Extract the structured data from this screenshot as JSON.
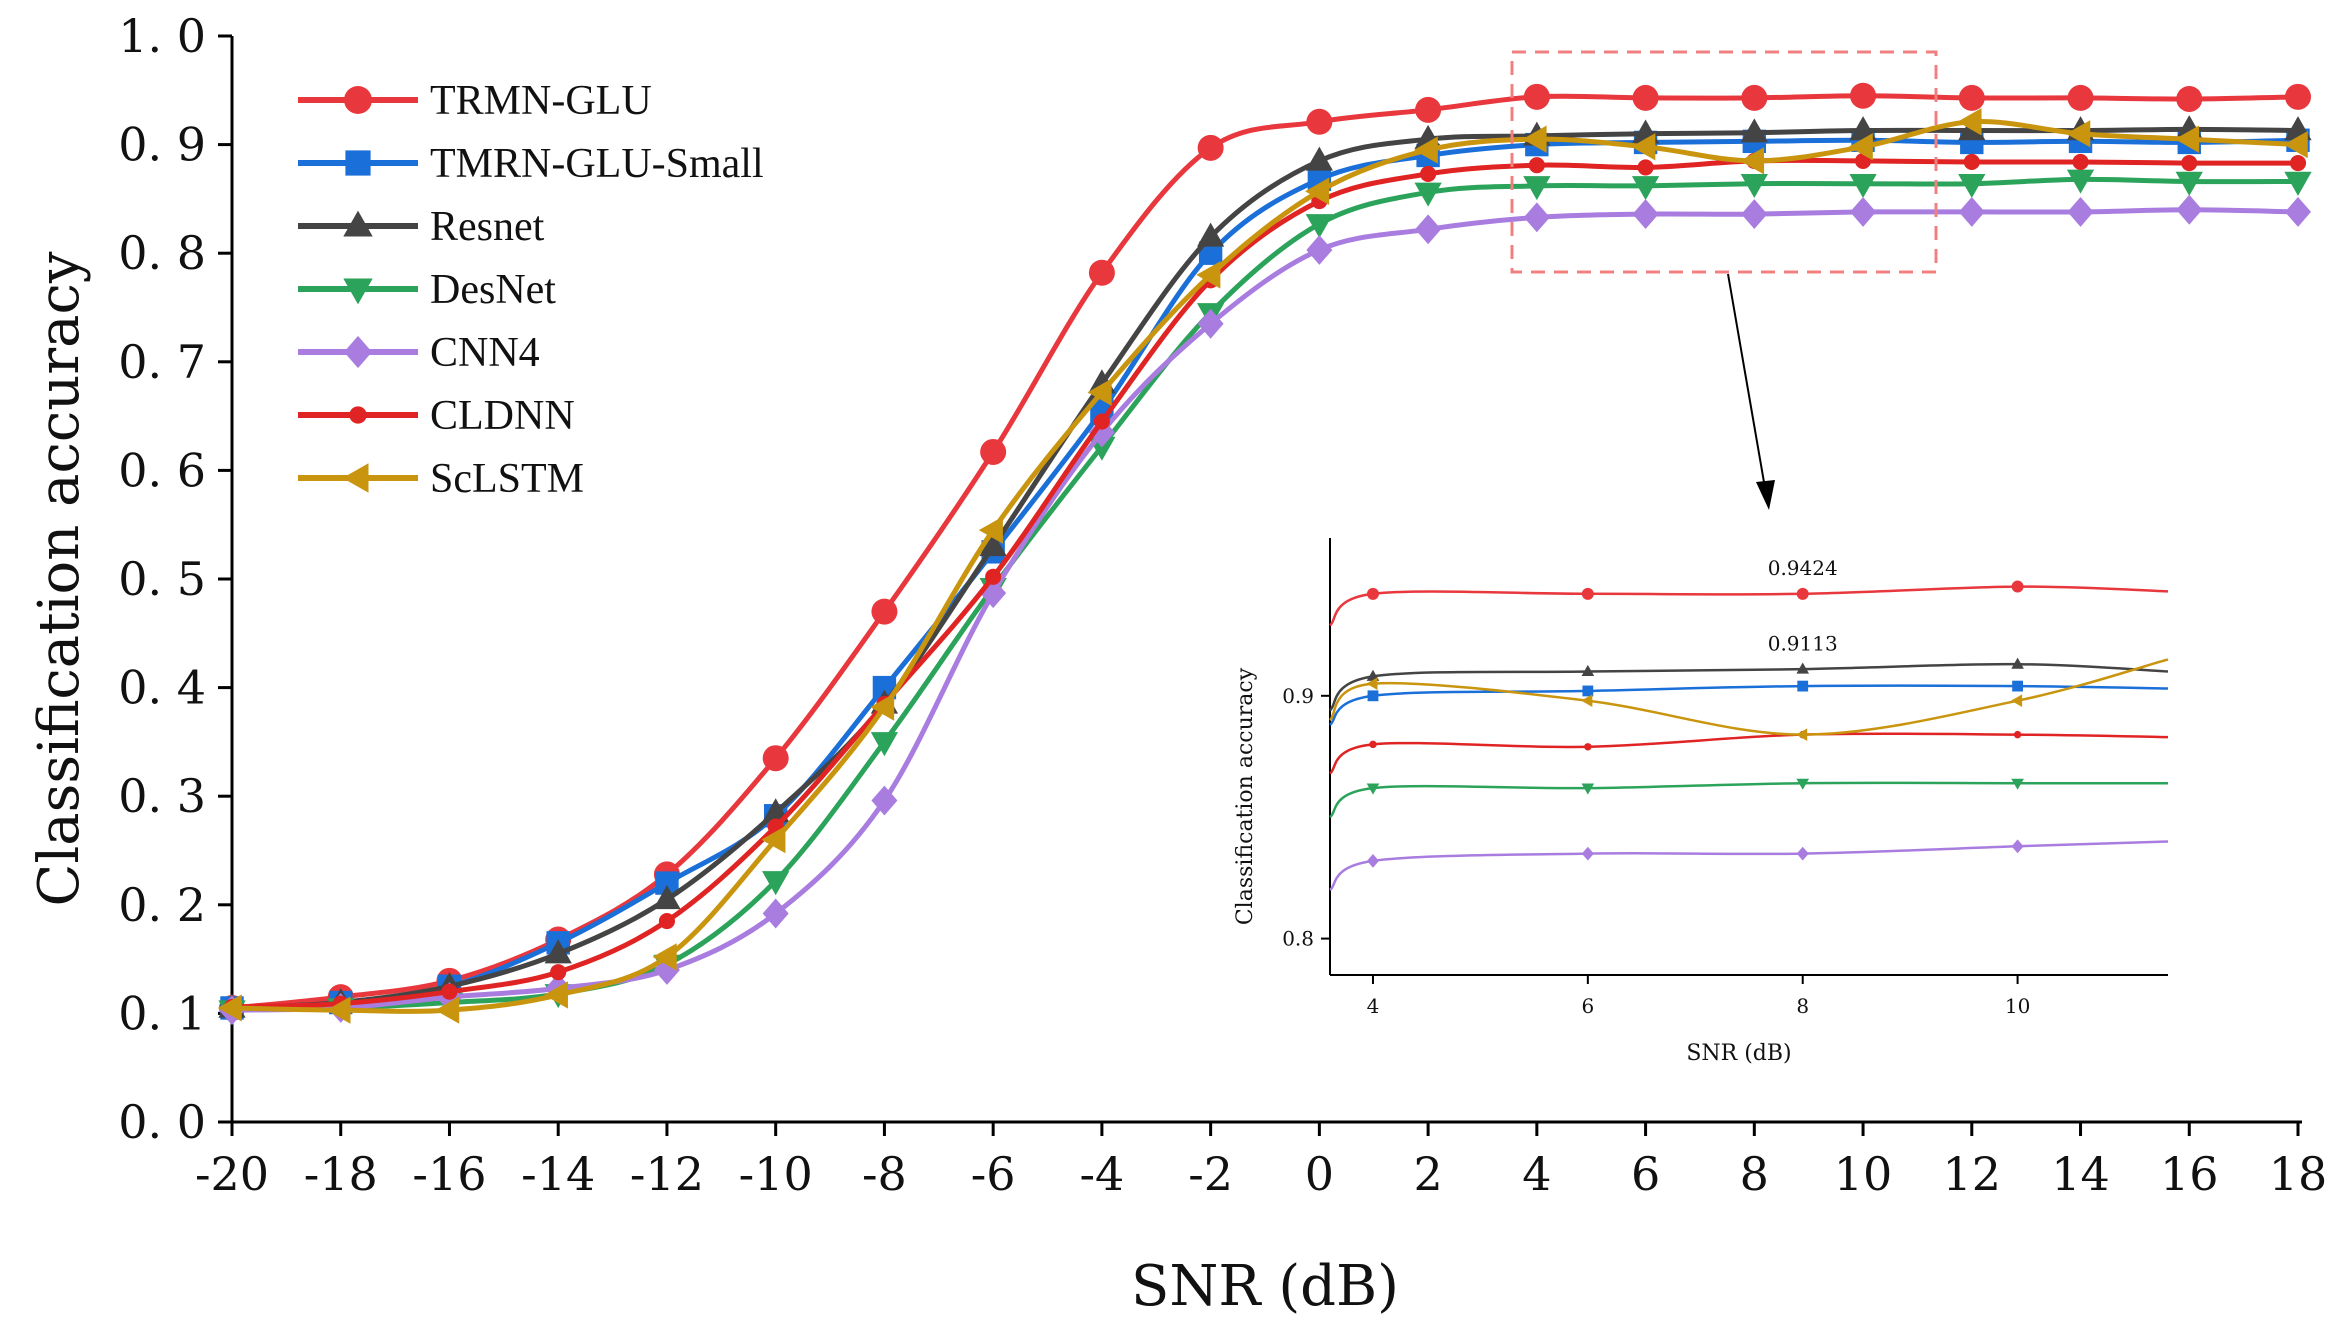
{
  "chart_data": {
    "type": "line",
    "title": "",
    "xlabel": "SNR (dB)",
    "ylabel": "Classification accuracy",
    "xlim": [
      -20,
      18
    ],
    "ylim": [
      0.0,
      1.0
    ],
    "x": [
      -20,
      -18,
      -16,
      -14,
      -12,
      -10,
      -8,
      -6,
      -4,
      -2,
      0,
      2,
      4,
      6,
      8,
      10,
      12,
      14,
      16,
      18
    ],
    "x_tick_labels": [
      "-20",
      "-18",
      "-16",
      "-14",
      "-12",
      "-10",
      "-8",
      "-6",
      "-4",
      "-2",
      "0",
      "2",
      "4",
      "6",
      "8",
      "10",
      "12",
      "14",
      "16",
      "18"
    ],
    "y_tick_labels": [
      "0. 0",
      "0. 1",
      "0. 2",
      "0. 3",
      "0. 4",
      "0. 5",
      "0. 6",
      "0. 7",
      "0. 8",
      "0. 9",
      "1. 0"
    ],
    "y_ticks": [
      0.0,
      0.1,
      0.2,
      0.3,
      0.4,
      0.5,
      0.6,
      0.7,
      0.8,
      0.9,
      1.0
    ],
    "legend_position": "top-left",
    "series": [
      {
        "name": "TRMN-GLU",
        "color": "#e8383d",
        "marker": "circle",
        "values": [
          0.105,
          0.115,
          0.13,
          0.168,
          0.228,
          0.335,
          0.47,
          0.617,
          0.782,
          0.897,
          0.921,
          0.932,
          0.944,
          0.943,
          0.943,
          0.945,
          0.943,
          0.943,
          0.942,
          0.944
        ]
      },
      {
        "name": "TMRN-GLU-Small",
        "color": "#1a6fd8",
        "marker": "square",
        "values": [
          0.105,
          0.11,
          0.125,
          0.165,
          0.22,
          0.282,
          0.4,
          0.525,
          0.655,
          0.8,
          0.868,
          0.89,
          0.9,
          0.902,
          0.903,
          0.904,
          0.902,
          0.903,
          0.902,
          0.904
        ]
      },
      {
        "name": "Resnet",
        "color": "#444444",
        "marker": "triangle-up",
        "values": [
          0.105,
          0.11,
          0.125,
          0.155,
          0.205,
          0.285,
          0.385,
          0.53,
          0.68,
          0.815,
          0.885,
          0.905,
          0.908,
          0.91,
          0.911,
          0.913,
          0.913,
          0.913,
          0.914,
          0.913
        ]
      },
      {
        "name": "DesNet",
        "color": "#2ca35a",
        "marker": "triangle-down",
        "values": [
          0.103,
          0.105,
          0.11,
          0.118,
          0.145,
          0.222,
          0.35,
          0.492,
          0.622,
          0.745,
          0.827,
          0.856,
          0.862,
          0.862,
          0.864,
          0.864,
          0.864,
          0.868,
          0.866,
          0.866
        ]
      },
      {
        "name": "CNN4",
        "color": "#a97de0",
        "marker": "diamond",
        "values": [
          0.103,
          0.105,
          0.115,
          0.123,
          0.14,
          0.192,
          0.296,
          0.487,
          0.635,
          0.735,
          0.803,
          0.822,
          0.833,
          0.836,
          0.836,
          0.838,
          0.838,
          0.838,
          0.84,
          0.838
        ]
      },
      {
        "name": "CLDNN",
        "color": "#e02424",
        "marker": "small-circle",
        "values": [
          0.106,
          0.109,
          0.12,
          0.138,
          0.185,
          0.272,
          0.385,
          0.502,
          0.645,
          0.775,
          0.848,
          0.873,
          0.881,
          0.879,
          0.885,
          0.885,
          0.884,
          0.884,
          0.883,
          0.883
        ]
      },
      {
        "name": "ScLSTM",
        "color": "#c9950e",
        "marker": "triangle-left",
        "values": [
          0.105,
          0.103,
          0.103,
          0.117,
          0.152,
          0.26,
          0.382,
          0.545,
          0.672,
          0.78,
          0.857,
          0.895,
          0.905,
          0.898,
          0.885,
          0.898,
          0.921,
          0.91,
          0.905,
          0.9
        ]
      }
    ],
    "inset": {
      "xlabel": "SNR (dB)",
      "ylabel": "Classification accuracy",
      "x_ticks": [
        4,
        6,
        8,
        10
      ],
      "x_tick_labels": [
        "4",
        "6",
        "8",
        "10"
      ],
      "y_ticks": [
        0.8,
        0.9
      ],
      "y_tick_labels": [
        "0.8",
        "0.9"
      ],
      "xlim": [
        3.6,
        11.4
      ],
      "ylim": [
        0.785,
        0.965
      ],
      "annotations": [
        {
          "text": "0.9424",
          "x": 8,
          "y": 0.9424
        },
        {
          "text": "0.9113",
          "x": 8,
          "y": 0.9113
        }
      ],
      "x": [
        3.6,
        4,
        6,
        8,
        10,
        11.4
      ],
      "series": [
        {
          "name": "TRMN-GLU",
          "values": [
            0.929,
            0.942,
            0.942,
            0.942,
            0.945,
            0.943
          ]
        },
        {
          "name": "TMRN-GLU-Small",
          "values": [
            0.888,
            0.9,
            0.902,
            0.904,
            0.904,
            0.903
          ]
        },
        {
          "name": "Resnet",
          "values": [
            0.894,
            0.908,
            0.91,
            0.911,
            0.913,
            0.91
          ]
        },
        {
          "name": "DesNet",
          "values": [
            0.85,
            0.862,
            0.862,
            0.864,
            0.864,
            0.864
          ]
        },
        {
          "name": "CNN4",
          "values": [
            0.82,
            0.832,
            0.835,
            0.835,
            0.838,
            0.84
          ]
        },
        {
          "name": "CLDNN",
          "values": [
            0.868,
            0.88,
            0.879,
            0.884,
            0.884,
            0.883
          ]
        },
        {
          "name": "ScLSTM",
          "values": [
            0.89,
            0.905,
            0.898,
            0.884,
            0.898,
            0.915
          ]
        }
      ]
    }
  }
}
